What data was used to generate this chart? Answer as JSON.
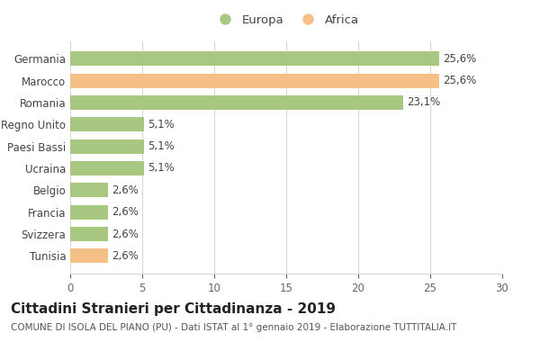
{
  "categories": [
    "Germania",
    "Marocco",
    "Romania",
    "Regno Unito",
    "Paesi Bassi",
    "Ucraina",
    "Belgio",
    "Francia",
    "Svizzera",
    "Tunisia"
  ],
  "values": [
    25.6,
    25.6,
    23.1,
    5.1,
    5.1,
    5.1,
    2.6,
    2.6,
    2.6,
    2.6
  ],
  "labels": [
    "25,6%",
    "25,6%",
    "23,1%",
    "5,1%",
    "5,1%",
    "5,1%",
    "2,6%",
    "2,6%",
    "2,6%",
    "2,6%"
  ],
  "colors": [
    "#a8c882",
    "#f5bf88",
    "#a8c882",
    "#a8c882",
    "#a8c882",
    "#a8c882",
    "#a8c882",
    "#a8c882",
    "#a8c882",
    "#f5bf88"
  ],
  "legend_labels": [
    "Europa",
    "Africa"
  ],
  "legend_colors": [
    "#a8c882",
    "#f5bf88"
  ],
  "title": "Cittadini Stranieri per Cittadinanza - 2019",
  "subtitle": "COMUNE DI ISOLA DEL PIANO (PU) - Dati ISTAT al 1° gennaio 2019 - Elaborazione TUTTITALIA.IT",
  "xlim": [
    0,
    30
  ],
  "xticks": [
    0,
    5,
    10,
    15,
    20,
    25,
    30
  ],
  "background_color": "#ffffff",
  "bar_edge_color": "none",
  "grid_color": "#d8d8d8",
  "title_fontsize": 11,
  "subtitle_fontsize": 7.5,
  "label_fontsize": 8.5,
  "tick_fontsize": 8.5,
  "legend_fontsize": 9.5,
  "bar_height": 0.65
}
